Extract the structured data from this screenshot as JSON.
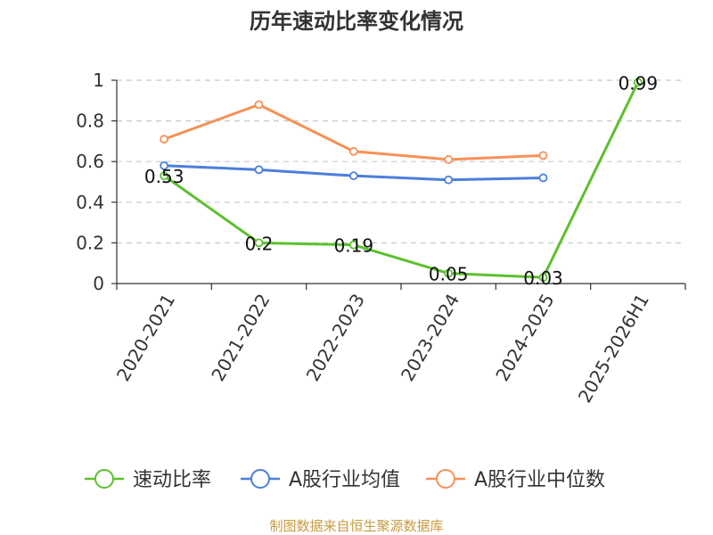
{
  "chart_data": {
    "type": "line",
    "title": "历年速动比率变化情况",
    "categories": [
      "2020-2021",
      "2021-2022",
      "2022-2023",
      "2023-2024",
      "2024-2025",
      "2025-2026H1"
    ],
    "ylim": [
      0,
      1
    ],
    "yticks": [
      "0",
      "0.2",
      "0.4",
      "0.6",
      "0.8",
      "1"
    ],
    "ytick_values": [
      0,
      0.2,
      0.4,
      0.6,
      0.8,
      1
    ],
    "grid": true,
    "legend_position": "bottom",
    "series": [
      {
        "name": "速动比率",
        "color": "#5cc02e",
        "values": [
          0.53,
          0.2,
          0.19,
          0.05,
          0.03,
          0.99
        ],
        "labels": [
          "0.53",
          "0.2",
          "0.19",
          "0.05",
          "0.03",
          "0.99"
        ]
      },
      {
        "name": "A股行业均值",
        "color": "#4a7fdb",
        "values": [
          0.58,
          0.56,
          0.53,
          0.51,
          0.52,
          null
        ]
      },
      {
        "name": "A股行业中位数",
        "color": "#f79056",
        "values": [
          0.71,
          0.88,
          0.65,
          0.61,
          0.63,
          null
        ]
      }
    ],
    "source": "制图数据来自恒生聚源数据库"
  }
}
